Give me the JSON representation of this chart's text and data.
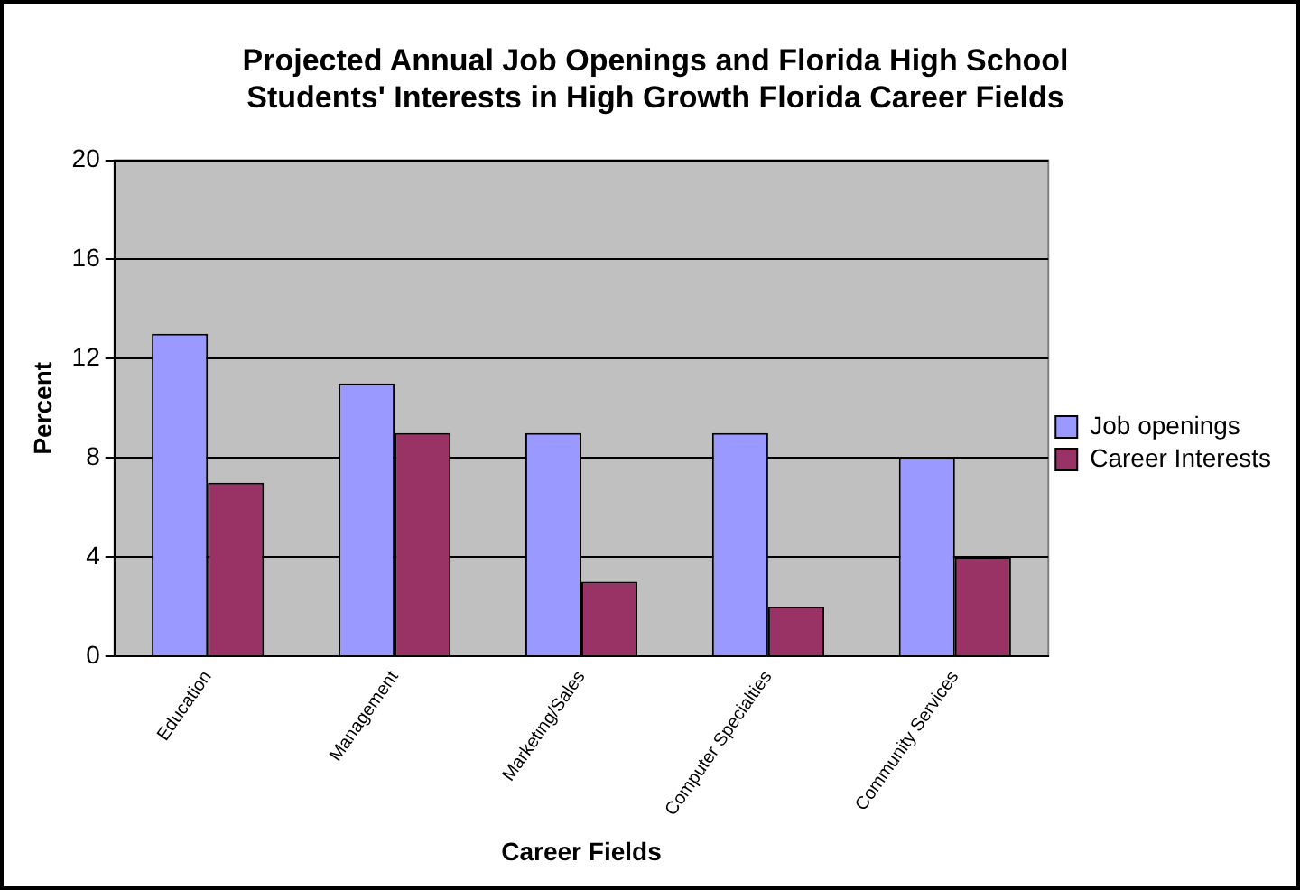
{
  "chart_data": {
    "type": "bar",
    "title": "Projected Annual Job Openings and Florida High School Students' Interests in High Growth Florida Career Fields",
    "xlabel": "Career Fields",
    "ylabel": "Percent",
    "categories": [
      "Education",
      "Management",
      "Marketing/Sales",
      "Computer Specialties",
      "Community Services"
    ],
    "series": [
      {
        "name": "Job openings",
        "color": "#9999ff",
        "values": [
          13,
          11,
          9,
          9,
          8
        ]
      },
      {
        "name": "Career Interests",
        "color": "#993366",
        "values": [
          7,
          9,
          3,
          2,
          4
        ]
      }
    ],
    "ylim": [
      0,
      20
    ],
    "yticks": [
      0,
      4,
      8,
      12,
      16,
      20
    ],
    "grid": "y",
    "legend": "right"
  }
}
